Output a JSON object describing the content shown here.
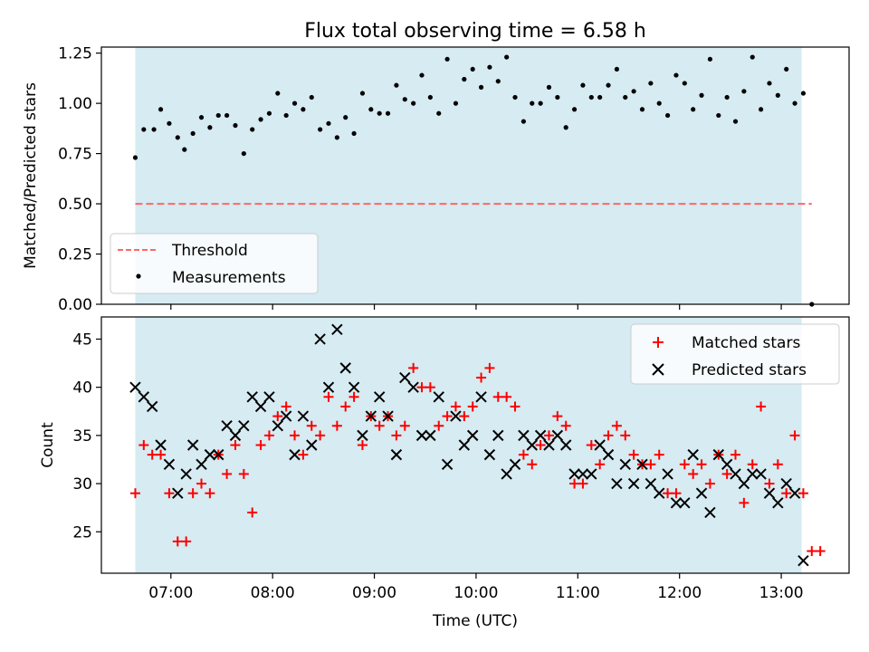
{
  "title": "Flux total observing time = 6.58 h",
  "colors": {
    "shade": "#add8e6",
    "threshold": "#ff6666",
    "measurement": "#000000",
    "matched": "#ff0000",
    "predicted": "#000000"
  },
  "chart_data": [
    {
      "type": "scatter",
      "title": "Flux total observing time = 6.58 h",
      "ylabel": "Matched/Predicted stars",
      "xlabel": "",
      "xlim": [
        "06:19",
        "13:40"
      ],
      "ylim": [
        0,
        1.28
      ],
      "x_tick_labels": [
        "07:00",
        "08:00",
        "09:00",
        "10:00",
        "11:00",
        "12:00",
        "13:00"
      ],
      "y_ticks": [
        0.0,
        0.25,
        0.5,
        0.75,
        1.0,
        1.25
      ],
      "y_tick_labels": [
        "0.00",
        "0.25",
        "0.50",
        "0.75",
        "1.00",
        "1.25"
      ],
      "observing_window": [
        "06:39",
        "13:12"
      ],
      "legend_position": "lower-left",
      "legend": [
        "Threshold",
        "Measurements"
      ],
      "threshold": {
        "name": "Threshold",
        "value": 0.5,
        "x_range": [
          "06:39",
          "13:18"
        ],
        "style": "dashed"
      },
      "series": [
        {
          "name": "Measurements",
          "marker": "dot",
          "points": [
            [
              "06:39",
              0.73
            ],
            [
              "06:44",
              0.87
            ],
            [
              "06:50",
              0.87
            ],
            [
              "06:54",
              0.97
            ],
            [
              "06:59",
              0.9
            ],
            [
              "07:04",
              0.83
            ],
            [
              "07:08",
              0.77
            ],
            [
              "07:13",
              0.85
            ],
            [
              "07:18",
              0.93
            ],
            [
              "07:23",
              0.88
            ],
            [
              "07:28",
              0.94
            ],
            [
              "07:33",
              0.94
            ],
            [
              "07:38",
              0.89
            ],
            [
              "07:43",
              0.75
            ],
            [
              "07:48",
              0.87
            ],
            [
              "07:53",
              0.92
            ],
            [
              "07:58",
              0.95
            ],
            [
              "08:03",
              1.05
            ],
            [
              "08:08",
              0.94
            ],
            [
              "08:13",
              1.0
            ],
            [
              "08:18",
              0.97
            ],
            [
              "08:23",
              1.03
            ],
            [
              "08:28",
              0.87
            ],
            [
              "08:33",
              0.9
            ],
            [
              "08:38",
              0.83
            ],
            [
              "08:43",
              0.93
            ],
            [
              "08:48",
              0.85
            ],
            [
              "08:53",
              1.05
            ],
            [
              "08:58",
              0.97
            ],
            [
              "09:03",
              0.95
            ],
            [
              "09:08",
              0.95
            ],
            [
              "09:13",
              1.09
            ],
            [
              "09:18",
              1.02
            ],
            [
              "09:23",
              1.0
            ],
            [
              "09:28",
              1.14
            ],
            [
              "09:33",
              1.03
            ],
            [
              "09:38",
              0.95
            ],
            [
              "09:43",
              1.22
            ],
            [
              "09:48",
              1.0
            ],
            [
              "09:53",
              1.12
            ],
            [
              "09:58",
              1.17
            ],
            [
              "10:03",
              1.08
            ],
            [
              "10:08",
              1.18
            ],
            [
              "10:13",
              1.11
            ],
            [
              "10:18",
              1.23
            ],
            [
              "10:23",
              1.03
            ],
            [
              "10:28",
              0.91
            ],
            [
              "10:33",
              1.0
            ],
            [
              "10:38",
              1.0
            ],
            [
              "10:43",
              1.08
            ],
            [
              "10:48",
              1.03
            ],
            [
              "10:53",
              0.88
            ],
            [
              "10:58",
              0.97
            ],
            [
              "11:03",
              1.09
            ],
            [
              "11:08",
              1.03
            ],
            [
              "11:13",
              1.03
            ],
            [
              "11:18",
              1.09
            ],
            [
              "11:23",
              1.17
            ],
            [
              "11:28",
              1.03
            ],
            [
              "11:33",
              1.06
            ],
            [
              "11:38",
              0.97
            ],
            [
              "11:43",
              1.1
            ],
            [
              "11:48",
              1.0
            ],
            [
              "11:53",
              0.94
            ],
            [
              "11:58",
              1.14
            ],
            [
              "12:03",
              1.1
            ],
            [
              "12:08",
              0.97
            ],
            [
              "12:13",
              1.04
            ],
            [
              "12:18",
              1.22
            ],
            [
              "12:23",
              0.94
            ],
            [
              "12:28",
              1.03
            ],
            [
              "12:33",
              0.91
            ],
            [
              "12:38",
              1.06
            ],
            [
              "12:43",
              1.23
            ],
            [
              "12:48",
              0.97
            ],
            [
              "12:53",
              1.1
            ],
            [
              "12:58",
              1.04
            ],
            [
              "13:03",
              1.17
            ],
            [
              "13:08",
              1.0
            ],
            [
              "13:13",
              1.05
            ],
            [
              "13:18",
              0.0
            ]
          ]
        }
      ]
    },
    {
      "type": "scatter",
      "xlabel": "Time (UTC)",
      "ylabel": "Count",
      "xlim": [
        "06:19",
        "13:40"
      ],
      "ylim": [
        20.7,
        47.3
      ],
      "x_tick_labels": [
        "07:00",
        "08:00",
        "09:00",
        "10:00",
        "11:00",
        "12:00",
        "13:00"
      ],
      "y_ticks": [
        25,
        30,
        35,
        40,
        45
      ],
      "y_tick_labels": [
        "25",
        "30",
        "35",
        "40",
        "45"
      ],
      "observing_window": [
        "06:39",
        "13:12"
      ],
      "legend_position": "top-right",
      "legend": [
        "Matched stars",
        "Predicted stars"
      ],
      "series": [
        {
          "name": "Matched stars",
          "marker": "plus",
          "color": "#ff0000",
          "points": [
            [
              "06:39",
              29
            ],
            [
              "06:44",
              34
            ],
            [
              "06:49",
              33
            ],
            [
              "06:54",
              33
            ],
            [
              "06:59",
              29
            ],
            [
              "07:04",
              24
            ],
            [
              "07:09",
              24
            ],
            [
              "07:13",
              29
            ],
            [
              "07:18",
              30
            ],
            [
              "07:23",
              29
            ],
            [
              "07:28",
              33
            ],
            [
              "07:33",
              31
            ],
            [
              "07:38",
              34
            ],
            [
              "07:43",
              31
            ],
            [
              "07:48",
              27
            ],
            [
              "07:53",
              34
            ],
            [
              "07:58",
              35
            ],
            [
              "08:03",
              37
            ],
            [
              "08:08",
              38
            ],
            [
              "08:13",
              35
            ],
            [
              "08:18",
              33
            ],
            [
              "08:23",
              36
            ],
            [
              "08:28",
              35
            ],
            [
              "08:33",
              39
            ],
            [
              "08:38",
              36
            ],
            [
              "08:43",
              38
            ],
            [
              "08:48",
              39
            ],
            [
              "08:53",
              34
            ],
            [
              "08:58",
              37
            ],
            [
              "09:03",
              36
            ],
            [
              "09:08",
              37
            ],
            [
              "09:13",
              35
            ],
            [
              "09:18",
              36
            ],
            [
              "09:23",
              42
            ],
            [
              "09:28",
              40
            ],
            [
              "09:33",
              40
            ],
            [
              "09:38",
              36
            ],
            [
              "09:43",
              37
            ],
            [
              "09:48",
              38
            ],
            [
              "09:53",
              37
            ],
            [
              "09:58",
              38
            ],
            [
              "10:03",
              41
            ],
            [
              "10:08",
              42
            ],
            [
              "10:13",
              39
            ],
            [
              "10:18",
              39
            ],
            [
              "10:23",
              38
            ],
            [
              "10:28",
              33
            ],
            [
              "10:33",
              32
            ],
            [
              "10:38",
              34
            ],
            [
              "10:43",
              35
            ],
            [
              "10:48",
              37
            ],
            [
              "10:53",
              36
            ],
            [
              "10:58",
              30
            ],
            [
              "11:03",
              30
            ],
            [
              "11:08",
              34
            ],
            [
              "11:13",
              32
            ],
            [
              "11:18",
              35
            ],
            [
              "11:23",
              36
            ],
            [
              "11:28",
              35
            ],
            [
              "11:33",
              33
            ],
            [
              "11:38",
              32
            ],
            [
              "11:43",
              32
            ],
            [
              "11:48",
              33
            ],
            [
              "11:53",
              29
            ],
            [
              "11:58",
              29
            ],
            [
              "12:03",
              32
            ],
            [
              "12:08",
              31
            ],
            [
              "12:13",
              32
            ],
            [
              "12:18",
              30
            ],
            [
              "12:23",
              33
            ],
            [
              "12:28",
              31
            ],
            [
              "12:33",
              33
            ],
            [
              "12:38",
              28
            ],
            [
              "12:43",
              32
            ],
            [
              "12:48",
              38
            ],
            [
              "12:53",
              30
            ],
            [
              "12:58",
              32
            ],
            [
              "13:03",
              29
            ],
            [
              "13:08",
              35
            ],
            [
              "13:13",
              29
            ],
            [
              "13:18",
              23
            ],
            [
              "13:23",
              23
            ]
          ]
        },
        {
          "name": "Predicted stars",
          "marker": "x",
          "color": "#000000",
          "points": [
            [
              "06:39",
              40
            ],
            [
              "06:44",
              39
            ],
            [
              "06:49",
              38
            ],
            [
              "06:54",
              34
            ],
            [
              "06:59",
              32
            ],
            [
              "07:04",
              29
            ],
            [
              "07:09",
              31
            ],
            [
              "07:13",
              34
            ],
            [
              "07:18",
              32
            ],
            [
              "07:23",
              33
            ],
            [
              "07:28",
              33
            ],
            [
              "07:33",
              36
            ],
            [
              "07:38",
              35
            ],
            [
              "07:43",
              36
            ],
            [
              "07:48",
              39
            ],
            [
              "07:53",
              38
            ],
            [
              "07:58",
              39
            ],
            [
              "08:03",
              36
            ],
            [
              "08:08",
              37
            ],
            [
              "08:13",
              33
            ],
            [
              "08:18",
              37
            ],
            [
              "08:23",
              34
            ],
            [
              "08:28",
              45
            ],
            [
              "08:33",
              40
            ],
            [
              "08:38",
              46
            ],
            [
              "08:43",
              42
            ],
            [
              "08:48",
              40
            ],
            [
              "08:53",
              35
            ],
            [
              "08:58",
              37
            ],
            [
              "09:03",
              39
            ],
            [
              "09:08",
              37
            ],
            [
              "09:13",
              33
            ],
            [
              "09:18",
              41
            ],
            [
              "09:23",
              40
            ],
            [
              "09:28",
              35
            ],
            [
              "09:33",
              35
            ],
            [
              "09:38",
              39
            ],
            [
              "09:43",
              32
            ],
            [
              "09:48",
              37
            ],
            [
              "09:53",
              34
            ],
            [
              "09:58",
              35
            ],
            [
              "10:03",
              39
            ],
            [
              "10:08",
              33
            ],
            [
              "10:13",
              35
            ],
            [
              "10:18",
              31
            ],
            [
              "10:23",
              32
            ],
            [
              "10:28",
              35
            ],
            [
              "10:33",
              34
            ],
            [
              "10:38",
              35
            ],
            [
              "10:43",
              34
            ],
            [
              "10:48",
              35
            ],
            [
              "10:53",
              34
            ],
            [
              "10:58",
              31
            ],
            [
              "11:03",
              31
            ],
            [
              "11:08",
              31
            ],
            [
              "11:13",
              34
            ],
            [
              "11:18",
              33
            ],
            [
              "11:23",
              30
            ],
            [
              "11:28",
              32
            ],
            [
              "11:33",
              30
            ],
            [
              "11:38",
              32
            ],
            [
              "11:43",
              30
            ],
            [
              "11:48",
              29
            ],
            [
              "11:53",
              31
            ],
            [
              "11:58",
              28
            ],
            [
              "12:03",
              28
            ],
            [
              "12:08",
              33
            ],
            [
              "12:13",
              29
            ],
            [
              "12:18",
              27
            ],
            [
              "12:23",
              33
            ],
            [
              "12:28",
              32
            ],
            [
              "12:33",
              31
            ],
            [
              "12:38",
              30
            ],
            [
              "12:43",
              31
            ],
            [
              "12:48",
              31
            ],
            [
              "12:53",
              29
            ],
            [
              "12:58",
              28
            ],
            [
              "13:03",
              30
            ],
            [
              "13:08",
              29
            ],
            [
              "13:13",
              22
            ]
          ]
        }
      ]
    }
  ]
}
